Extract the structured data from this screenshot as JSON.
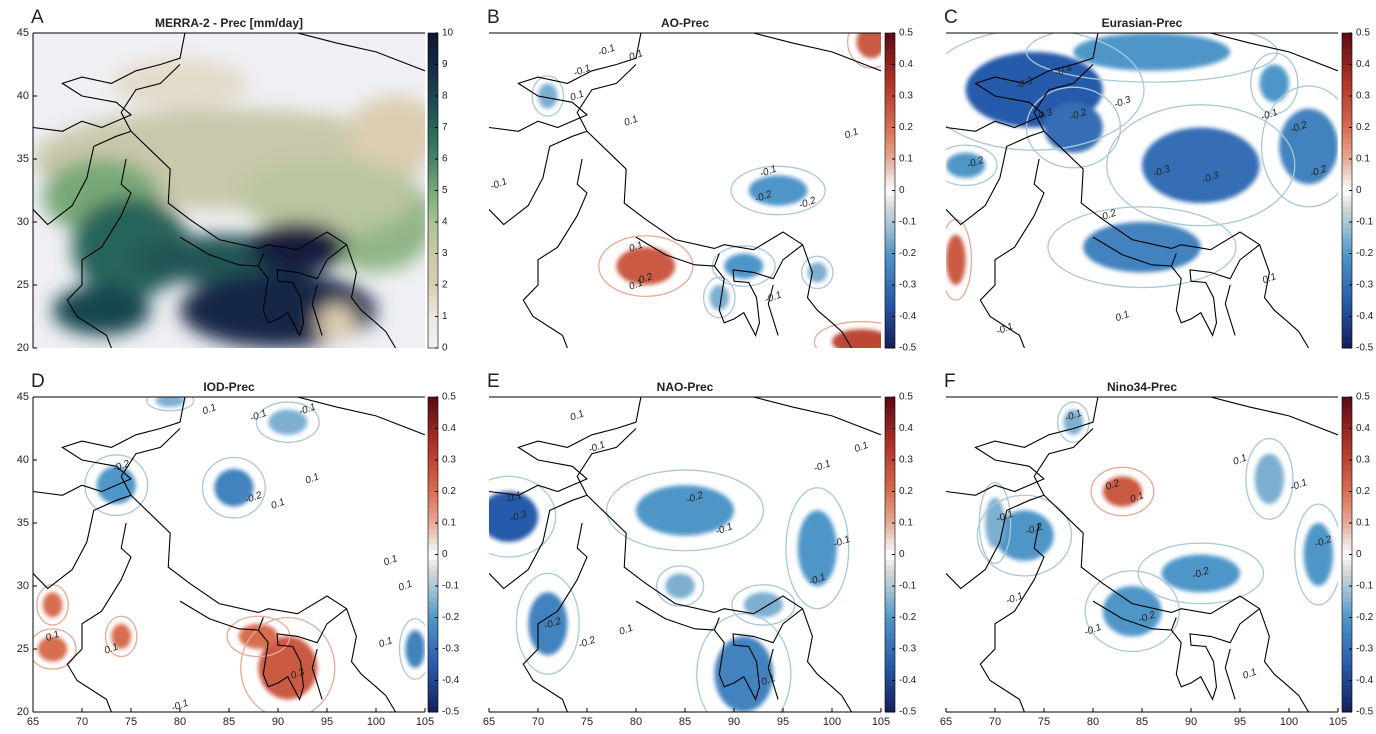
{
  "chart_data": [
    {
      "type": "map",
      "letter": "A",
      "title": "MERRA-2 - Prec [mm/day]",
      "colormap": "precip",
      "xlim": [
        65,
        105
      ],
      "ylim": [
        20,
        45
      ],
      "yticks": [
        20,
        25,
        30,
        35,
        40,
        45
      ],
      "clim": [
        0,
        10
      ],
      "cticks": [
        0,
        1,
        2,
        3,
        4,
        5,
        6,
        7,
        8,
        9,
        10
      ],
      "blobs": [
        {
          "lon": 85,
          "lat": 35,
          "rx": 20,
          "ry": 4,
          "value": 3
        },
        {
          "lon": 80,
          "lat": 41,
          "rx": 7,
          "ry": 2,
          "value": 1.5
        },
        {
          "lon": 102,
          "lat": 37,
          "rx": 5,
          "ry": 3,
          "value": 2
        },
        {
          "lon": 100,
          "lat": 30,
          "rx": 6,
          "ry": 4,
          "value": 4.5
        },
        {
          "lon": 95,
          "lat": 32,
          "rx": 9,
          "ry": 3,
          "value": 3.5
        },
        {
          "lon": 72,
          "lat": 32,
          "rx": 6,
          "ry": 3,
          "value": 5
        },
        {
          "lon": 75,
          "lat": 28,
          "rx": 6,
          "ry": 4,
          "value": 7
        },
        {
          "lon": 85,
          "lat": 27,
          "rx": 10,
          "ry": 2,
          "value": 7.5
        },
        {
          "lon": 90,
          "lat": 23,
          "rx": 10,
          "ry": 3,
          "value": 9
        },
        {
          "lon": 72,
          "lat": 23,
          "rx": 5,
          "ry": 2,
          "value": 8
        },
        {
          "lon": 92,
          "lat": 28,
          "rx": 5,
          "ry": 2,
          "value": 9.5
        },
        {
          "lon": 96,
          "lat": 22,
          "rx": 2,
          "ry": 1.5,
          "value": 2
        }
      ],
      "labels": []
    },
    {
      "type": "map",
      "letter": "B",
      "title": "AO-Prec",
      "colormap": "corr",
      "xlim": [
        65,
        105
      ],
      "ylim": [
        20,
        45
      ],
      "clim": [
        -0.5,
        0.5
      ],
      "cticks": [
        -0.5,
        -0.4,
        -0.3,
        -0.2,
        -0.1,
        0,
        0.1,
        0.2,
        0.3,
        0.4,
        0.5
      ],
      "blobs": [
        {
          "lon": 81,
          "lat": 26.5,
          "rx": 3,
          "ry": 1.5,
          "value": 0.25
        },
        {
          "lon": 104,
          "lat": 44.3,
          "rx": 1.5,
          "ry": 1.3,
          "value": 0.25
        },
        {
          "lon": 103,
          "lat": 20.5,
          "rx": 3,
          "ry": 1,
          "value": 0.3
        },
        {
          "lon": 94.5,
          "lat": 32.5,
          "rx": 3,
          "ry": 1.2,
          "value": -0.2
        },
        {
          "lon": 91,
          "lat": 26.5,
          "rx": 2,
          "ry": 1,
          "value": -0.2
        },
        {
          "lon": 88.5,
          "lat": 24,
          "rx": 1,
          "ry": 1,
          "value": -0.15
        },
        {
          "lon": 98.5,
          "lat": 26,
          "rx": 1,
          "ry": 0.8,
          "value": -0.15
        },
        {
          "lon": 71,
          "lat": 40,
          "rx": 1,
          "ry": 1,
          "value": -0.15
        }
      ],
      "labels": [
        {
          "lon": 77,
          "lat": 43.6,
          "value": -0.1
        },
        {
          "lon": 74.5,
          "lat": 42,
          "value": -0.1
        },
        {
          "lon": 80,
          "lat": 43.2,
          "value": 0.1
        },
        {
          "lon": 74,
          "lat": 40,
          "value": 0.1
        },
        {
          "lon": 79.5,
          "lat": 38,
          "value": 0.1
        },
        {
          "lon": 93.5,
          "lat": 34,
          "value": -0.1
        },
        {
          "lon": 93,
          "lat": 32,
          "value": -0.2
        },
        {
          "lon": 97.5,
          "lat": 31.5,
          "value": -0.2
        },
        {
          "lon": 81,
          "lat": 25.5,
          "value": 0.2
        },
        {
          "lon": 80,
          "lat": 25,
          "value": 0.1
        },
        {
          "lon": 80,
          "lat": 28,
          "value": 0.1
        },
        {
          "lon": 66,
          "lat": 33,
          "value": -0.1
        },
        {
          "lon": 102,
          "lat": 37,
          "value": 0.1
        },
        {
          "lon": 94,
          "lat": 24,
          "value": -0.1
        }
      ]
    },
    {
      "type": "map",
      "letter": "C",
      "title": "Eurasian-Prec",
      "colormap": "corr",
      "xlim": [
        65,
        105
      ],
      "ylim": [
        20,
        45
      ],
      "clim": [
        -0.5,
        0.5
      ],
      "cticks": [
        -0.5,
        -0.4,
        -0.3,
        -0.2,
        -0.1,
        0,
        0.1,
        0.2,
        0.3,
        0.4,
        0.5
      ],
      "blobs": [
        {
          "lon": 74,
          "lat": 40.5,
          "rx": 7,
          "ry": 3,
          "value": -0.35
        },
        {
          "lon": 78,
          "lat": 37.5,
          "rx": 3,
          "ry": 2,
          "value": -0.3
        },
        {
          "lon": 91,
          "lat": 34.5,
          "rx": 6,
          "ry": 3,
          "value": -0.3
        },
        {
          "lon": 85,
          "lat": 28,
          "rx": 6,
          "ry": 2,
          "value": -0.25
        },
        {
          "lon": 102,
          "lat": 36,
          "rx": 3,
          "ry": 3,
          "value": -0.25
        },
        {
          "lon": 86,
          "lat": 43.5,
          "rx": 8,
          "ry": 1.5,
          "value": -0.2
        },
        {
          "lon": 67,
          "lat": 34.5,
          "rx": 2,
          "ry": 1,
          "value": -0.2
        },
        {
          "lon": 66,
          "lat": 27,
          "rx": 1,
          "ry": 2,
          "value": 0.25
        },
        {
          "lon": 98.5,
          "lat": 41,
          "rx": 1.5,
          "ry": 1.5,
          "value": -0.2
        }
      ],
      "labels": [
        {
          "lon": 73,
          "lat": 41,
          "value": -0.3
        },
        {
          "lon": 77,
          "lat": 42,
          "value": -0.4
        },
        {
          "lon": 75,
          "lat": 38.5,
          "value": -0.3
        },
        {
          "lon": 78.5,
          "lat": 38.5,
          "value": -0.2
        },
        {
          "lon": 83,
          "lat": 39.5,
          "value": -0.3
        },
        {
          "lon": 87,
          "lat": 34,
          "value": -0.3
        },
        {
          "lon": 92,
          "lat": 33.5,
          "value": -0.3
        },
        {
          "lon": 98,
          "lat": 38.5,
          "value": -0.1
        },
        {
          "lon": 101,
          "lat": 37.5,
          "value": -0.2
        },
        {
          "lon": 103,
          "lat": 34,
          "value": -0.2
        },
        {
          "lon": 68,
          "lat": 34.7,
          "value": -0.2
        },
        {
          "lon": 81.5,
          "lat": 30.5,
          "value": -0.2
        },
        {
          "lon": 98,
          "lat": 25.5,
          "value": 0.1
        },
        {
          "lon": 83,
          "lat": 22.5,
          "value": 0.1
        },
        {
          "lon": 71,
          "lat": 21.5,
          "value": -0.1
        }
      ]
    },
    {
      "type": "map",
      "letter": "D",
      "title": "IOD-Prec",
      "colormap": "corr",
      "xlim": [
        65,
        105
      ],
      "ylim": [
        20,
        45
      ],
      "xticks": [
        65,
        70,
        75,
        80,
        85,
        90,
        95,
        100,
        105
      ],
      "yticks": [
        20,
        25,
        30,
        35,
        40,
        45
      ],
      "clim": [
        -0.5,
        0.5
      ],
      "cticks": [
        -0.5,
        -0.4,
        -0.3,
        -0.2,
        -0.1,
        0,
        0.1,
        0.2,
        0.3,
        0.4,
        0.5
      ],
      "blobs": [
        {
          "lon": 85.5,
          "lat": 37.8,
          "rx": 2,
          "ry": 1.5,
          "value": -0.25
        },
        {
          "lon": 73.5,
          "lat": 38,
          "rx": 2,
          "ry": 1.5,
          "value": -0.2
        },
        {
          "lon": 91,
          "lat": 23.5,
          "rx": 3,
          "ry": 2.5,
          "value": 0.25
        },
        {
          "lon": 88,
          "lat": 26,
          "rx": 2,
          "ry": 1,
          "value": 0.2
        },
        {
          "lon": 104,
          "lat": 25,
          "rx": 1,
          "ry": 1.5,
          "value": -0.25
        },
        {
          "lon": 67,
          "lat": 28.5,
          "rx": 1,
          "ry": 1,
          "value": 0.2
        },
        {
          "lon": 74,
          "lat": 26,
          "rx": 1,
          "ry": 1,
          "value": 0.2
        },
        {
          "lon": 67,
          "lat": 25,
          "rx": 1.5,
          "ry": 1,
          "value": 0.2
        },
        {
          "lon": 91,
          "lat": 43,
          "rx": 2,
          "ry": 1,
          "value": -0.15
        },
        {
          "lon": 79,
          "lat": 44.7,
          "rx": 1.5,
          "ry": 0.5,
          "value": -0.15
        }
      ],
      "labels": [
        {
          "lon": 83,
          "lat": 44,
          "value": 0.1
        },
        {
          "lon": 88,
          "lat": 43.5,
          "value": -0.1
        },
        {
          "lon": 93,
          "lat": 44,
          "value": -0.1
        },
        {
          "lon": 87.5,
          "lat": 37,
          "value": -0.2
        },
        {
          "lon": 90,
          "lat": 36.5,
          "value": 0.1
        },
        {
          "lon": 93.5,
          "lat": 38.5,
          "value": 0.1
        },
        {
          "lon": 74,
          "lat": 39.5,
          "value": -0.2
        },
        {
          "lon": 101.5,
          "lat": 32,
          "value": 0.1
        },
        {
          "lon": 103,
          "lat": 30,
          "value": 0.1
        },
        {
          "lon": 67,
          "lat": 26,
          "value": 0.1
        },
        {
          "lon": 73,
          "lat": 25,
          "value": 0.1
        },
        {
          "lon": 92,
          "lat": 23,
          "value": 0.3
        },
        {
          "lon": 101,
          "lat": 25.5,
          "value": 0.1
        },
        {
          "lon": 80,
          "lat": 20.5,
          "value": -0.1
        }
      ]
    },
    {
      "type": "map",
      "letter": "E",
      "title": "NAO-Prec",
      "colormap": "corr",
      "xlim": [
        65,
        105
      ],
      "ylim": [
        20,
        45
      ],
      "xticks": [
        65,
        70,
        75,
        80,
        85,
        90,
        95,
        100,
        105
      ],
      "clim": [
        -0.5,
        0.5
      ],
      "cticks": [
        -0.5,
        -0.4,
        -0.3,
        -0.2,
        -0.1,
        0,
        0.1,
        0.2,
        0.3,
        0.4,
        0.5
      ],
      "blobs": [
        {
          "lon": 67,
          "lat": 35.5,
          "rx": 3,
          "ry": 2,
          "value": -0.35
        },
        {
          "lon": 85,
          "lat": 36,
          "rx": 5,
          "ry": 2,
          "value": -0.2
        },
        {
          "lon": 98.5,
          "lat": 33,
          "rx": 2,
          "ry": 3,
          "value": -0.2
        },
        {
          "lon": 71,
          "lat": 27,
          "rx": 2,
          "ry": 2.5,
          "value": -0.25
        },
        {
          "lon": 91,
          "lat": 23,
          "rx": 3,
          "ry": 3,
          "value": -0.25
        },
        {
          "lon": 84.5,
          "lat": 30,
          "rx": 1.5,
          "ry": 1,
          "value": -0.15
        },
        {
          "lon": 93,
          "lat": 28.5,
          "rx": 2,
          "ry": 1,
          "value": -0.15
        }
      ],
      "labels": [
        {
          "lon": 74,
          "lat": 43.5,
          "value": 0.1
        },
        {
          "lon": 76,
          "lat": 41,
          "value": -0.1
        },
        {
          "lon": 67.5,
          "lat": 37,
          "value": -0.1
        },
        {
          "lon": 68,
          "lat": 35.5,
          "value": -0.3
        },
        {
          "lon": 86,
          "lat": 37,
          "value": -0.2
        },
        {
          "lon": 89,
          "lat": 34.5,
          "value": -0.1
        },
        {
          "lon": 99,
          "lat": 39.5,
          "value": -0.1
        },
        {
          "lon": 101,
          "lat": 33.5,
          "value": -0.1
        },
        {
          "lon": 71.5,
          "lat": 27,
          "value": -0.2
        },
        {
          "lon": 75,
          "lat": 25.5,
          "value": -0.2
        },
        {
          "lon": 79,
          "lat": 26.5,
          "value": 0.1
        },
        {
          "lon": 93.5,
          "lat": 22.5,
          "value": 0.1
        },
        {
          "lon": 98.5,
          "lat": 30.5,
          "value": -0.1
        },
        {
          "lon": 103,
          "lat": 41,
          "value": 0.1
        }
      ]
    },
    {
      "type": "map",
      "letter": "F",
      "title": "Nino34-Prec",
      "colormap": "corr",
      "xlim": [
        65,
        105
      ],
      "ylim": [
        20,
        45
      ],
      "xticks": [
        65,
        70,
        75,
        80,
        85,
        90,
        95,
        100,
        105
      ],
      "clim": [
        -0.5,
        0.5
      ],
      "cticks": [
        -0.5,
        -0.4,
        -0.3,
        -0.2,
        -0.1,
        0,
        0.1,
        0.2,
        0.3,
        0.4,
        0.5
      ],
      "blobs": [
        {
          "lon": 83,
          "lat": 37.5,
          "rx": 2,
          "ry": 1.2,
          "value": 0.25
        },
        {
          "lon": 73,
          "lat": 34,
          "rx": 3,
          "ry": 2,
          "value": -0.2
        },
        {
          "lon": 91,
          "lat": 31,
          "rx": 4,
          "ry": 1.5,
          "value": -0.2
        },
        {
          "lon": 84,
          "lat": 28,
          "rx": 3,
          "ry": 2,
          "value": -0.2
        },
        {
          "lon": 78,
          "lat": 43,
          "rx": 1,
          "ry": 1,
          "value": -0.15
        },
        {
          "lon": 103,
          "lat": 32.5,
          "rx": 1.5,
          "ry": 2.5,
          "value": -0.2
        },
        {
          "lon": 98,
          "lat": 38.5,
          "rx": 1.5,
          "ry": 2,
          "value": -0.15
        },
        {
          "lon": 70,
          "lat": 35,
          "rx": 1,
          "ry": 2,
          "value": -0.15
        }
      ],
      "labels": [
        {
          "lon": 82,
          "lat": 38,
          "value": 0.2
        },
        {
          "lon": 84.5,
          "lat": 37,
          "value": 0.1
        },
        {
          "lon": 78,
          "lat": 43.5,
          "value": -0.1
        },
        {
          "lon": 74,
          "lat": 34.5,
          "value": -0.2
        },
        {
          "lon": 71,
          "lat": 35.5,
          "value": -0.1
        },
        {
          "lon": 91,
          "lat": 31,
          "value": -0.2
        },
        {
          "lon": 85.5,
          "lat": 27.5,
          "value": -0.2
        },
        {
          "lon": 95,
          "lat": 40,
          "value": 0.1
        },
        {
          "lon": 101,
          "lat": 38,
          "value": -0.1
        },
        {
          "lon": 103.5,
          "lat": 33.5,
          "value": -0.2
        },
        {
          "lon": 96,
          "lat": 23,
          "value": 0.1
        },
        {
          "lon": 72,
          "lat": 29,
          "value": -0.1
        },
        {
          "lon": 80,
          "lat": 26.5,
          "value": -0.1
        }
      ]
    }
  ]
}
